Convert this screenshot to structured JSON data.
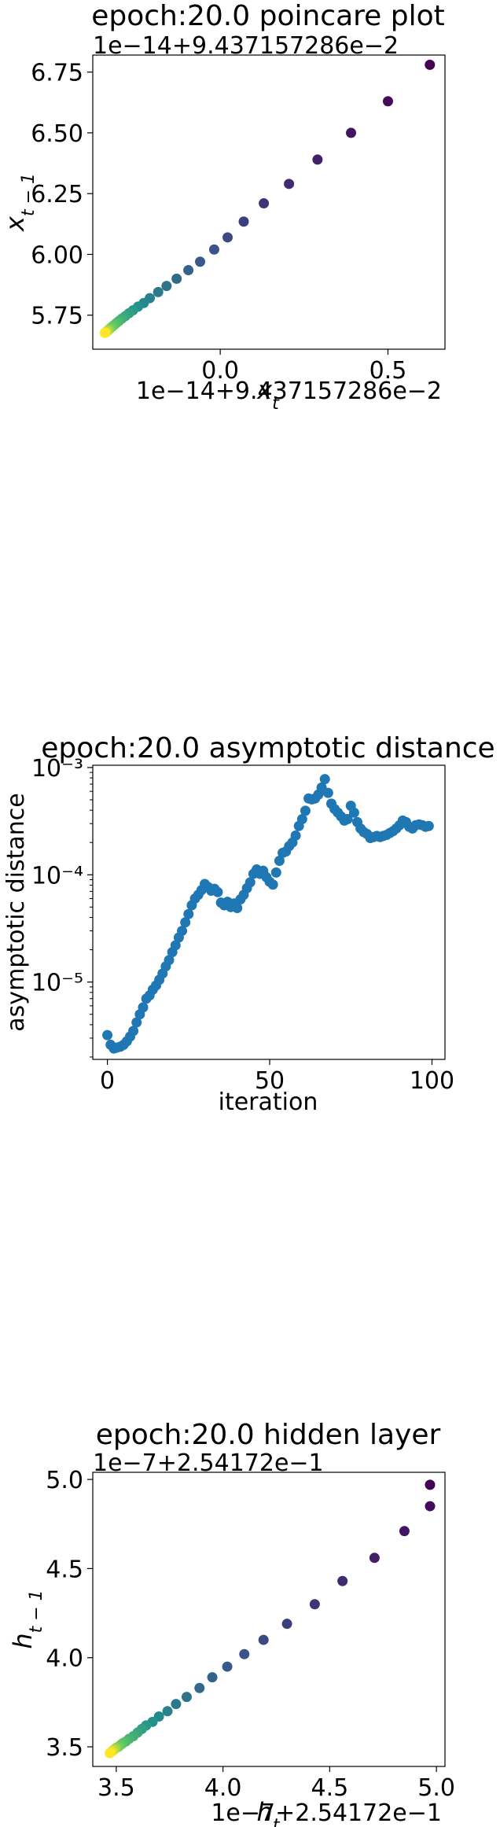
{
  "chart_data": [
    {
      "type": "scatter",
      "title": "epoch:20.0 poincare plot",
      "xlabel": "x_t",
      "ylabel": "x_{t-1}",
      "x_offset_label": "1e−14+9.437157286e−2",
      "y_offset_label": "1e−14+9.437157286e−2",
      "x_tick_labels": [
        "0.0",
        "0.5"
      ],
      "x_ticks": [
        0.0,
        0.5
      ],
      "y_tick_labels": [
        "5.75",
        "6.00",
        "6.25",
        "6.50",
        "6.75"
      ],
      "y_ticks": [
        5.75,
        6.0,
        6.25,
        6.5,
        6.75
      ],
      "xlim": [
        -0.38,
        0.67
      ],
      "ylim": [
        5.61,
        6.82
      ],
      "scale_y": "linear",
      "grid": false,
      "colormap": "viridis",
      "x": [
        0.625,
        0.5,
        0.39,
        0.29,
        0.205,
        0.13,
        0.07,
        0.022,
        -0.018,
        -0.06,
        -0.095,
        -0.13,
        -0.16,
        -0.185,
        -0.21,
        -0.228,
        -0.245,
        -0.26,
        -0.272,
        -0.283,
        -0.293,
        -0.302,
        -0.31,
        -0.316,
        -0.322,
        -0.327,
        -0.331,
        -0.334,
        -0.337,
        -0.339,
        -0.341,
        -0.343,
        -0.344
      ],
      "y": [
        6.78,
        6.63,
        6.5,
        6.39,
        6.29,
        6.21,
        6.135,
        6.07,
        6.02,
        5.97,
        5.935,
        5.9,
        5.87,
        5.845,
        5.82,
        5.8,
        5.785,
        5.77,
        5.758,
        5.746,
        5.736,
        5.726,
        5.717,
        5.71,
        5.703,
        5.697,
        5.692,
        5.688,
        5.685,
        5.682,
        5.68,
        5.678,
        5.677
      ]
    },
    {
      "type": "scatter",
      "title": "epoch:20.0 asymptotic distance",
      "xlabel": "iteration",
      "ylabel": "asymptotic distance",
      "x_tick_labels": [
        "0",
        "50",
        "100"
      ],
      "x_ticks": [
        0,
        50,
        100
      ],
      "y_tick_labels": [
        "10⁻⁵",
        "10⁻⁴",
        "10⁻³"
      ],
      "y_ticks": [
        1e-05,
        0.0001,
        0.001
      ],
      "xlim": [
        -4.5,
        104
      ],
      "ylim": [
        1.9e-06,
        0.00105
      ],
      "scale_y": "log",
      "grid": false,
      "color": "#1f77b4",
      "x": [
        0,
        1,
        2,
        3,
        4,
        5,
        6,
        7,
        8,
        9,
        10,
        11,
        12,
        13,
        14,
        15,
        16,
        17,
        18,
        19,
        20,
        21,
        22,
        23,
        24,
        25,
        26,
        27,
        28,
        29,
        30,
        31,
        32,
        33,
        34,
        35,
        36,
        37,
        38,
        39,
        40,
        41,
        42,
        43,
        44,
        45,
        46,
        47,
        48,
        49,
        50,
        51,
        52,
        53,
        54,
        55,
        56,
        57,
        58,
        59,
        60,
        61,
        62,
        63,
        64,
        65,
        66,
        67,
        68,
        69,
        70,
        71,
        72,
        73,
        74,
        75,
        76,
        77,
        78,
        79,
        80,
        81,
        82,
        83,
        84,
        85,
        86,
        87,
        88,
        89,
        90,
        91,
        92,
        93,
        94,
        95,
        96,
        97,
        98,
        99
      ],
      "y": [
        3.2e-06,
        2.6e-06,
        2.4e-06,
        2.45e-06,
        2.5e-06,
        2.6e-06,
        2.8e-06,
        3.1e-06,
        3.5e-06,
        4.2e-06,
        5e-06,
        5.8e-06,
        7e-06,
        7.5e-06,
        8.5e-06,
        9.3e-06,
        1.05e-05,
        1.2e-05,
        1.4e-05,
        1.6e-05,
        1.9e-05,
        2.2e-05,
        2.6e-05,
        3e-05,
        3.6e-05,
        4.3e-05,
        5.2e-05,
        6e-05,
        6.5e-05,
        7.2e-05,
        8.2e-05,
        7.7e-05,
        7.1e-05,
        7.4e-05,
        6.9e-05,
        5.5e-05,
        5.2e-05,
        5.6e-05,
        5e-05,
        5.4e-05,
        4.9e-05,
        5.9e-05,
        6.5e-05,
        7.5e-05,
        8.5e-05,
        0.000102,
        0.000112,
        0.000102,
        0.000109,
        9.5e-05,
        8.6e-05,
        8.1e-05,
        0.000105,
        0.000135,
        0.00016,
        0.000165,
        0.000185,
        0.0002,
        0.000232,
        0.000285,
        0.00033,
        0.000395,
        0.000515,
        0.000505,
        0.000515,
        0.00056,
        0.00065,
        0.00078,
        0.00058,
        0.00046,
        0.00041,
        0.00038,
        0.00035,
        0.00032,
        0.00033,
        0.00044,
        0.00038,
        0.00031,
        0.00027,
        0.00025,
        0.00024,
        0.00022,
        0.000225,
        0.00023,
        0.000225,
        0.00023,
        0.000235,
        0.000245,
        0.000255,
        0.00027,
        0.00029,
        0.00032,
        0.00031,
        0.00028,
        0.00027,
        0.00029,
        0.000295,
        0.00029,
        0.00028,
        0.000285
      ]
    },
    {
      "type": "scatter",
      "title": "epoch:20.0 hidden layer",
      "xlabel": "h_t",
      "ylabel": "h_{t-1}",
      "x_offset_label": "1e−7+2.54172e−1",
      "y_offset_label": "1e−7+2.54172e−1",
      "x_tick_labels": [
        "3.5",
        "4.0",
        "4.5",
        "5.0"
      ],
      "x_ticks": [
        3.5,
        4.0,
        4.5,
        5.0
      ],
      "y_tick_labels": [
        "3.5",
        "4.0",
        "4.5",
        "5.0"
      ],
      "y_ticks": [
        3.5,
        4.0,
        4.5,
        5.0
      ],
      "xlim": [
        3.39,
        5.04
      ],
      "ylim": [
        3.39,
        5.04
      ],
      "scale_y": "linear",
      "grid": false,
      "colormap": "viridis",
      "x": [
        4.97,
        4.97,
        4.85,
        4.71,
        4.56,
        4.43,
        4.3,
        4.19,
        4.1,
        4.02,
        3.95,
        3.89,
        3.83,
        3.78,
        3.74,
        3.7,
        3.67,
        3.64,
        3.62,
        3.6,
        3.58,
        3.56,
        3.545,
        3.53,
        3.52,
        3.51,
        3.5,
        3.495,
        3.49,
        3.485,
        3.48,
        3.475,
        3.47
      ],
      "y": [
        4.97,
        4.85,
        4.71,
        4.56,
        4.43,
        4.3,
        4.19,
        4.1,
        4.02,
        3.95,
        3.89,
        3.83,
        3.78,
        3.74,
        3.7,
        3.67,
        3.64,
        3.62,
        3.6,
        3.58,
        3.56,
        3.545,
        3.53,
        3.52,
        3.51,
        3.5,
        3.495,
        3.49,
        3.485,
        3.48,
        3.475,
        3.47,
        3.465
      ]
    }
  ]
}
